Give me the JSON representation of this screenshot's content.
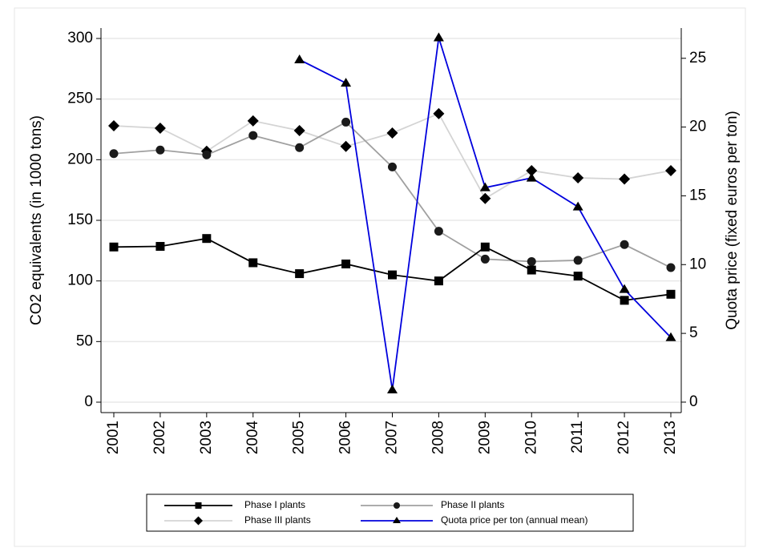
{
  "chart_data": {
    "type": "line",
    "categories": [
      "2001",
      "2002",
      "2003",
      "2004",
      "2005",
      "2006",
      "2007",
      "2008",
      "2009",
      "2010",
      "2011",
      "2012",
      "2013"
    ],
    "y_label": "CO2 equivalents (in 1000 tons)",
    "y2_label": "Quota price (fixed euros per ton)",
    "ylim": [
      -8.6,
      308.6
    ],
    "yticks": [
      0,
      50,
      100,
      150,
      200,
      250,
      300
    ],
    "y2lim": [
      -0.76,
      27.2
    ],
    "y2ticks": [
      0,
      5,
      10,
      15,
      20,
      25
    ],
    "grid": true,
    "legend": "bottom",
    "series": [
      {
        "name": "Phase I plants",
        "color": "#000000",
        "marker": "square",
        "marker_color": "#000000",
        "values": [
          128,
          128.5,
          135,
          115,
          106,
          114,
          105,
          100,
          128,
          109,
          104,
          84,
          89
        ]
      },
      {
        "name": "Phase II plants",
        "color": "#a0a0a0",
        "marker": "circle",
        "marker_color": "#1a1a1a",
        "values": [
          205,
          208,
          204,
          220,
          210,
          231,
          194,
          141,
          118,
          116,
          117,
          130,
          111
        ]
      },
      {
        "name": "Phase III plants",
        "color": "#d4d4d4",
        "marker": "diamond",
        "marker_color": "#000000",
        "values": [
          228,
          226,
          207,
          232,
          224,
          211,
          222,
          238,
          168,
          191,
          185,
          184,
          191
        ]
      },
      {
        "name": "Quota price per ton (annual mean)",
        "color": "#0000dd",
        "marker": "triangle",
        "marker_color": "#000000",
        "axis": "y2",
        "values": [
          null,
          null,
          null,
          null,
          24.9,
          23.2,
          0.9,
          26.5,
          15.6,
          16.3,
          14.2,
          8.2,
          4.7
        ]
      }
    ]
  }
}
